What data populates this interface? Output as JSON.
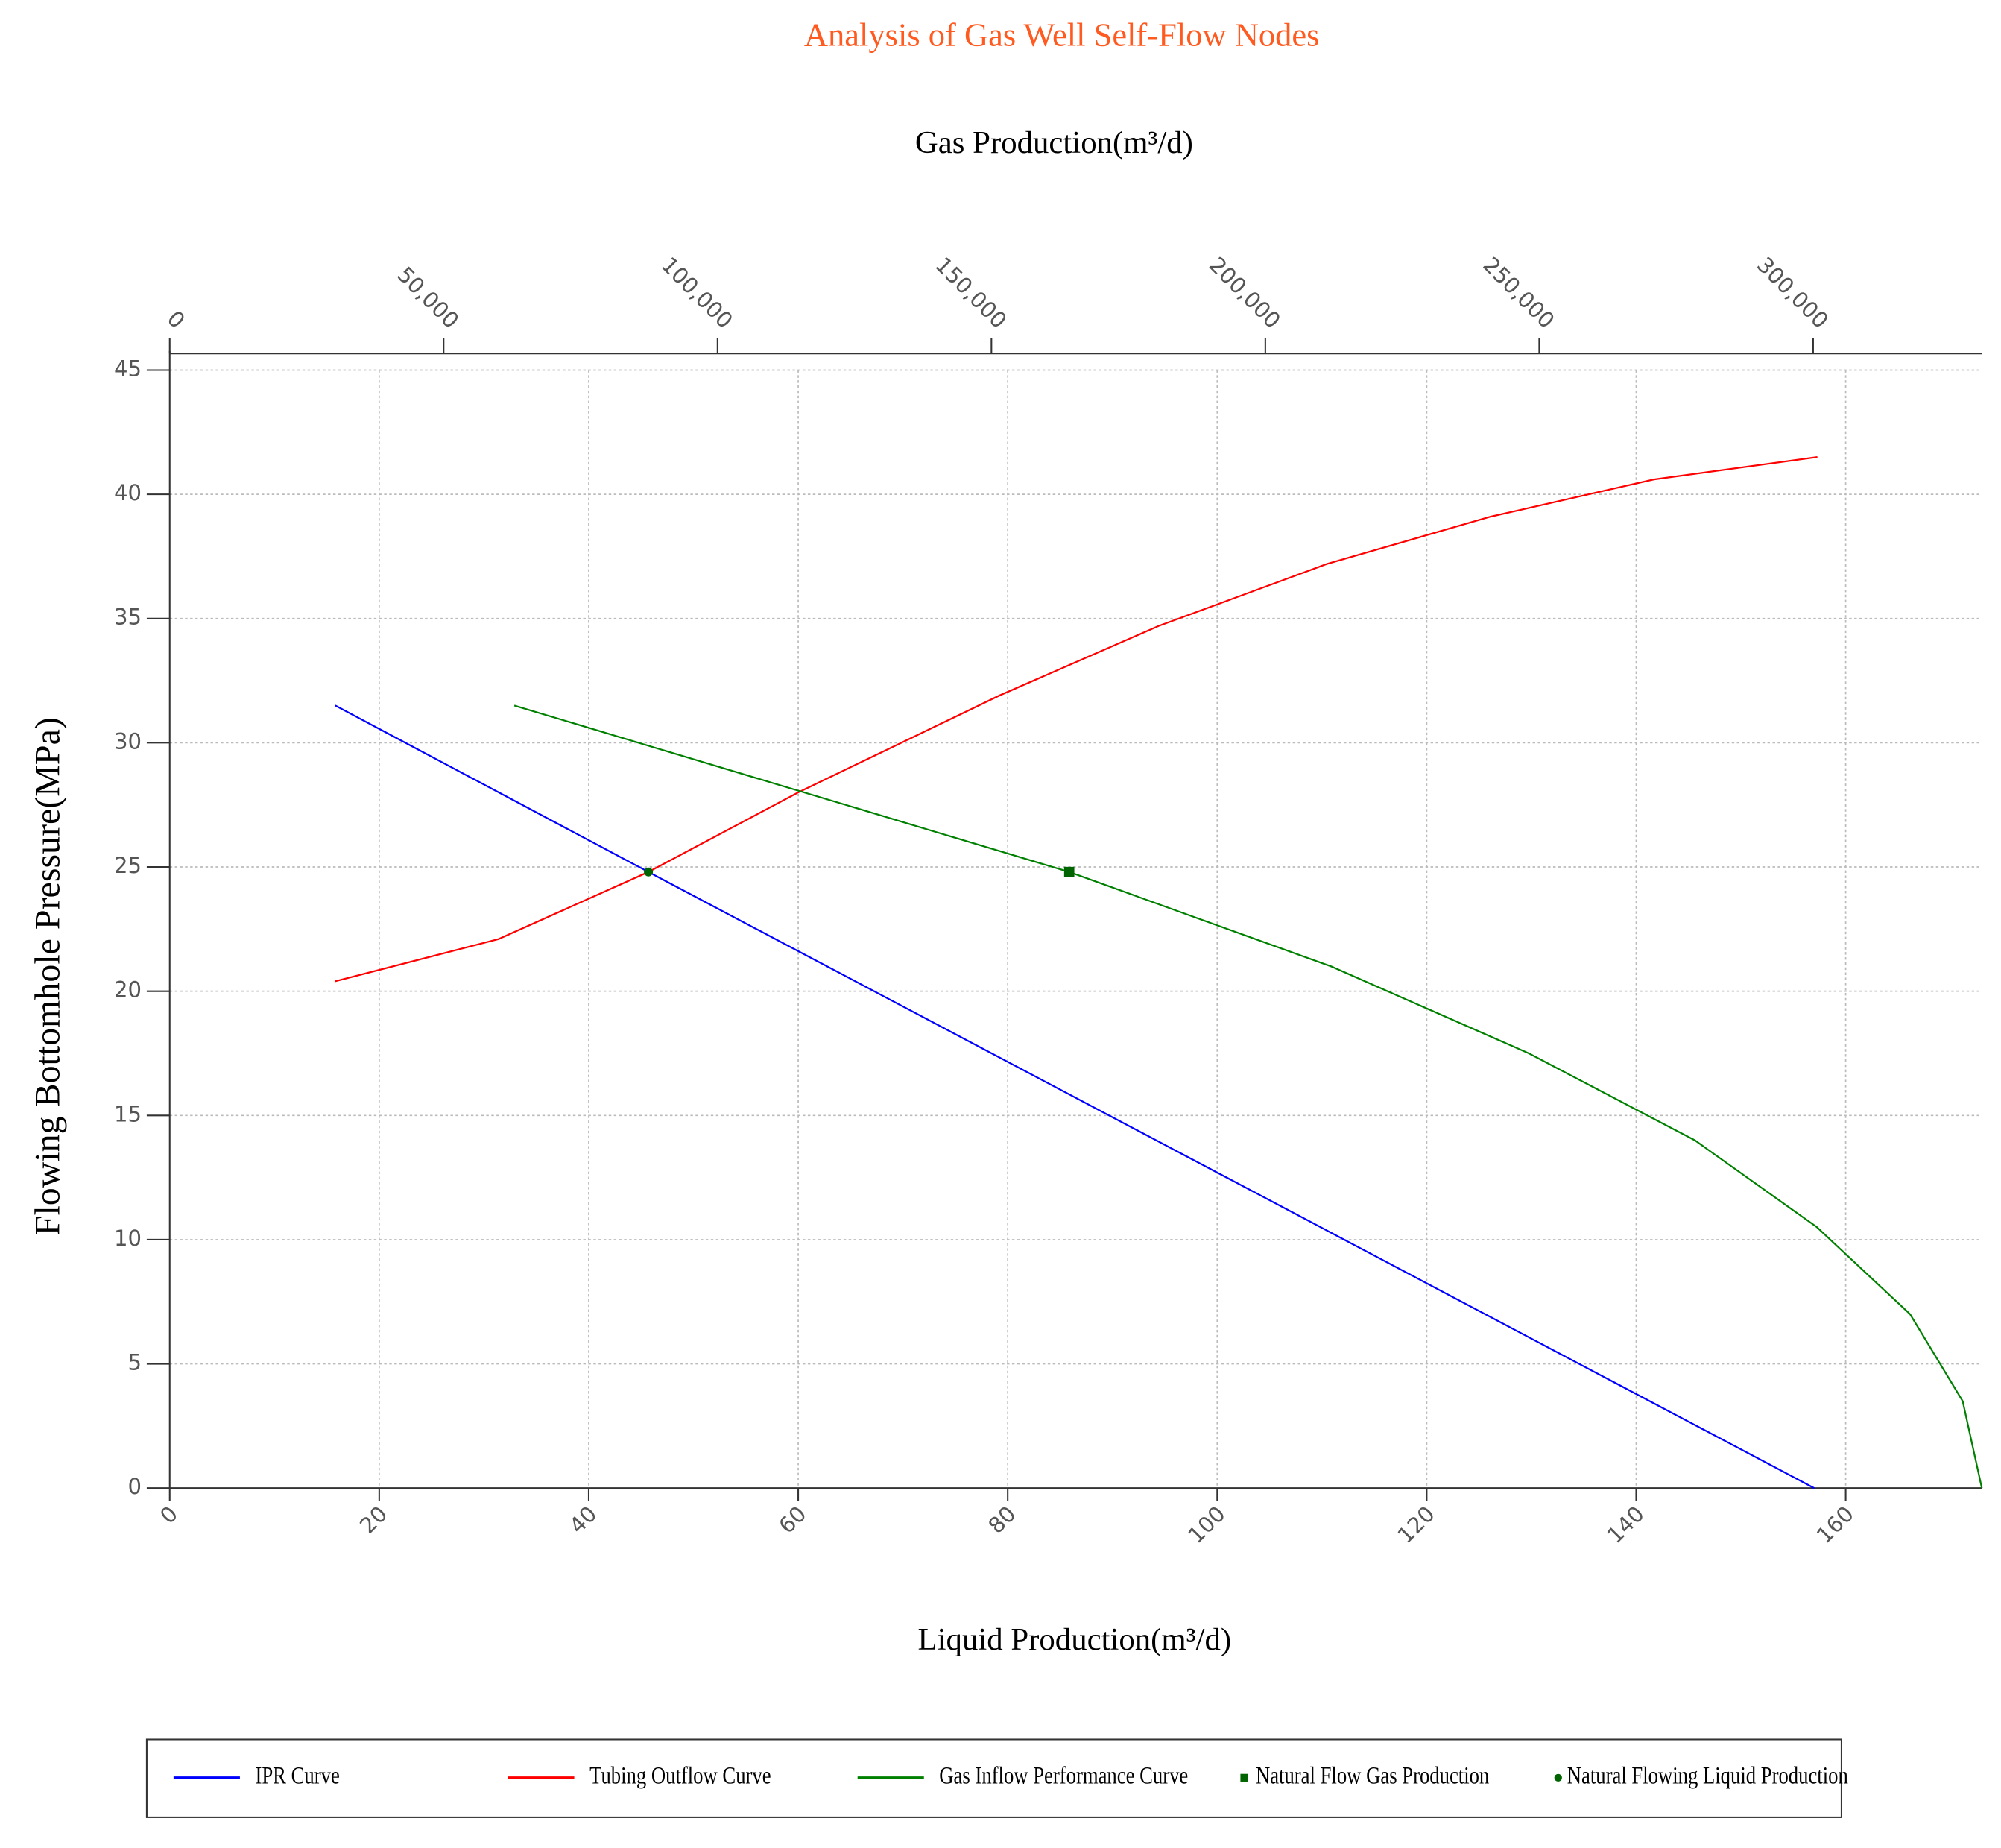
{
  "chart_data": {
    "type": "line",
    "title": "Analysis of Gas Well Self-Flow Nodes",
    "title_color": "#ff5a1f",
    "xlabel": "Liquid Production(m³/d)",
    "x2label": "Gas Production(m³/d)",
    "ylabel": "Flowing Bottomhole Pressure(MPa)",
    "xlim": [
      0,
      173
    ],
    "xticks": [
      0,
      20,
      40,
      60,
      80,
      100,
      120,
      140,
      160
    ],
    "x2lim": [
      0,
      330800
    ],
    "x2ticks": [
      0,
      {
        "value": 50000,
        "label": "50,000"
      },
      {
        "value": 100000,
        "label": "100,000"
      },
      {
        "value": 150000,
        "label": "150,000"
      },
      {
        "value": 200000,
        "label": "200,000"
      },
      {
        "value": 250000,
        "label": "250,000"
      },
      {
        "value": 300000,
        "label": "300,000"
      }
    ],
    "ylim": [
      0,
      45
    ],
    "yticks": [
      0,
      5,
      10,
      15,
      20,
      25,
      30,
      35,
      40,
      45
    ],
    "grid": true,
    "legend": "bottom",
    "series": [
      {
        "name": "IPR Curve",
        "color": "#0000ff",
        "mode": "line",
        "x": [
          15.8,
          45.7,
          157.0
        ],
        "values": [
          31.5,
          24.8,
          0
        ]
      },
      {
        "name": "Tubing Outflow Curve",
        "color": "#ff0000",
        "mode": "line",
        "x": [
          15.8,
          31.4,
          45.7,
          60,
          79.2,
          94.4,
          110.5,
          126.1,
          141.7,
          157.3
        ],
        "values": [
          20.4,
          22.1,
          24.8,
          28.0,
          31.9,
          34.7,
          37.2,
          39.1,
          40.6,
          41.5
        ]
      },
      {
        "name": "Gas Inflow Performance Curve",
        "color": "#008000",
        "mode": "line",
        "axis": "x2",
        "x": [
          62900,
          164200,
          212000,
          248100,
          278400,
          300700,
          317700,
          327300,
          330800
        ],
        "values": [
          31.5,
          24.8,
          21.0,
          17.5,
          14.0,
          10.5,
          7.0,
          3.5,
          0
        ]
      },
      {
        "name": "Natural Flow Gas Production",
        "color": "#006400",
        "mode": "square",
        "axis": "x2",
        "x": [
          164200
        ],
        "values": [
          24.8
        ]
      },
      {
        "name": "Natural Flowing Liquid Production",
        "color": "#006400",
        "mode": "dot",
        "x": [
          45.7
        ],
        "values": [
          24.8
        ]
      }
    ]
  }
}
